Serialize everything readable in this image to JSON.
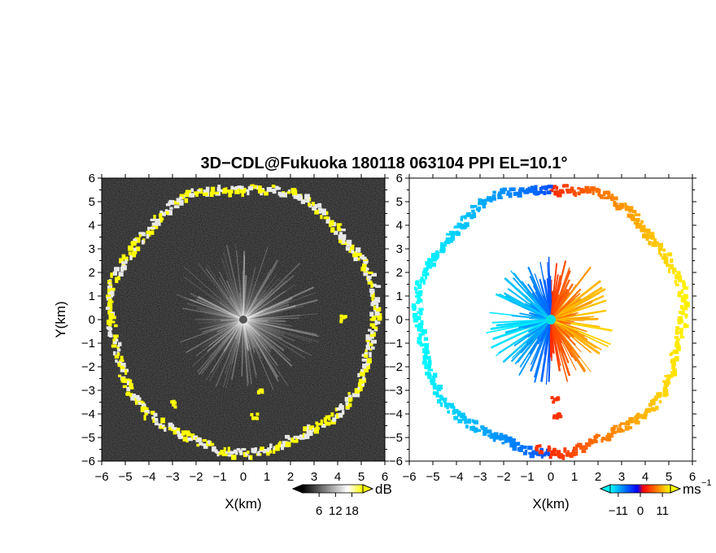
{
  "title": "3D−CDL@Fukuoka 180118 063104 PPI EL=10.1°",
  "chart_data": [
    {
      "type": "heatmap",
      "panel": "left",
      "xlabel": "X(km)",
      "ylabel": "Y(km)",
      "xlim": [
        -6,
        6
      ],
      "ylim": [
        -6,
        6
      ],
      "x_ticks": [
        "−6",
        "−5",
        "−4",
        "−3",
        "−2",
        "−1",
        "0",
        "1",
        "2",
        "3",
        "4",
        "5",
        "6"
      ],
      "y_ticks": [
        "6",
        "5",
        "4",
        "3",
        "2",
        "1",
        "0",
        "−1",
        "−2",
        "−3",
        "−4",
        "−5",
        "−6"
      ],
      "colormap": "grayscale with yellow high values",
      "colorbar": {
        "unit": "dB",
        "tick_labels": [
          "6",
          "12",
          "18"
        ],
        "tick_values": [
          6,
          12,
          18
        ],
        "range": [
          0,
          22
        ],
        "colors": [
          "#000000",
          "#ffffff",
          "#ffff00"
        ]
      },
      "features": {
        "ring_radius_km": 5.6,
        "radar_center": [
          0,
          0
        ],
        "echo_blobs_km": [
          [
            4.2,
            0.1
          ],
          [
            0.4,
            -4.0
          ],
          [
            -3.0,
            -3.5
          ],
          [
            0.6,
            -3.0
          ]
        ]
      }
    },
    {
      "type": "heatmap",
      "panel": "right",
      "xlabel": "X(km)",
      "xlim": [
        -6,
        6
      ],
      "ylim": [
        -6,
        6
      ],
      "x_ticks": [
        "−6",
        "−5",
        "−4",
        "−3",
        "−2",
        "−1",
        "0",
        "1",
        "2",
        "3",
        "4",
        "5",
        "6"
      ],
      "y_ticks": [
        "6",
        "5",
        "4",
        "3",
        "2",
        "1",
        "0",
        "−1",
        "−2",
        "−3",
        "−4",
        "−5",
        "−6"
      ],
      "colormap": "diverging blue–red doppler velocity",
      "colorbar": {
        "unit": "ms",
        "unit_exponent": "−1",
        "tick_labels": [
          "−11",
          "0",
          "11"
        ],
        "tick_values": [
          -11,
          0,
          11
        ],
        "range": [
          -15,
          15
        ],
        "colors": [
          "#00ffff",
          "#0000ff",
          "#ff0000",
          "#ffff00"
        ]
      },
      "features": {
        "ring_radius_km": 5.6,
        "center_marker": [
          0,
          0
        ],
        "center_marker_color": "#00e0e0"
      }
    }
  ]
}
